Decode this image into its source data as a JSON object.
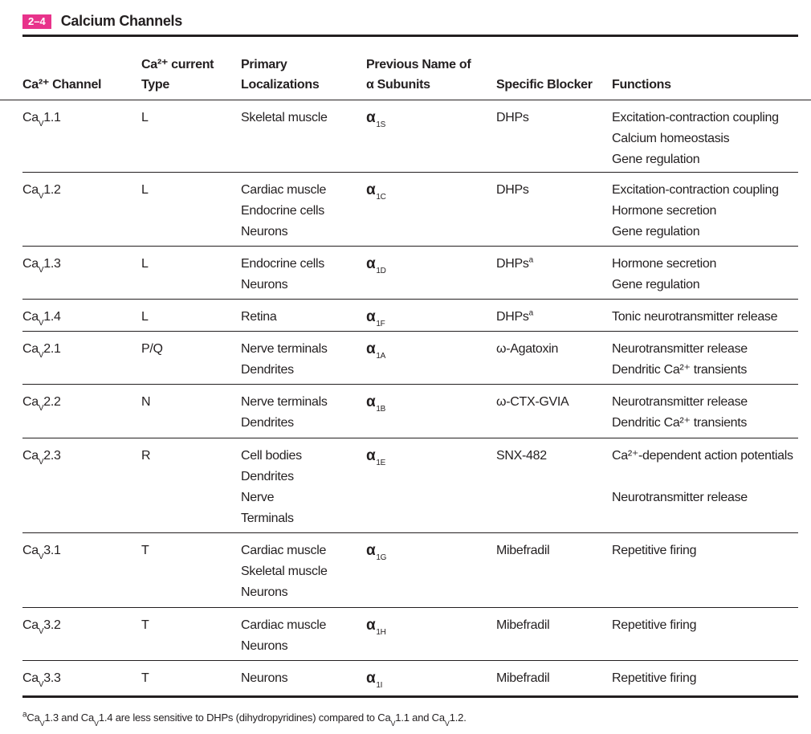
{
  "table": {
    "number": "2–4",
    "title": "Calcium Channels"
  },
  "headers": {
    "channel": "Ca²⁺ Channel",
    "current_type_l1": "Ca²⁺ current",
    "current_type_l2": "Type",
    "localization_l1": "Primary",
    "localization_l2": "Localizations",
    "previous_name_l1": "Previous Name of",
    "previous_name_l2": "α Subunits",
    "blocker": "Specific Blocker",
    "functions": "Functions"
  },
  "rows": [
    {
      "channel_prefix": "Ca",
      "channel_sub": "V",
      "channel_suffix": "1.1",
      "current_type": "L",
      "localizations": [
        "Skeletal muscle"
      ],
      "alpha": "α",
      "alpha_sub": "1S",
      "blocker": "DHPs",
      "blocker_note": "",
      "functions": [
        "Excitation-contraction coupling",
        "Calcium homeostasis",
        "Gene regulation"
      ]
    },
    {
      "channel_prefix": "Ca",
      "channel_sub": "V",
      "channel_suffix": "1.2",
      "current_type": "L",
      "localizations": [
        "Cardiac muscle",
        "Endocrine cells",
        "Neurons"
      ],
      "alpha": "α",
      "alpha_sub": "1C",
      "blocker": "DHPs",
      "blocker_note": "",
      "functions": [
        "Excitation-contraction coupling",
        "Hormone secretion",
        "Gene regulation"
      ]
    },
    {
      "channel_prefix": "Ca",
      "channel_sub": "V",
      "channel_suffix": "1.3",
      "current_type": "L",
      "localizations": [
        "Endocrine cells",
        "Neurons"
      ],
      "alpha": "α",
      "alpha_sub": "1D",
      "blocker": "DHPs",
      "blocker_note": "a",
      "functions": [
        "Hormone secretion",
        "Gene regulation"
      ]
    },
    {
      "channel_prefix": "Ca",
      "channel_sub": "V",
      "channel_suffix": "1.4",
      "current_type": "L",
      "localizations": [
        "Retina"
      ],
      "alpha": "α",
      "alpha_sub": "1F",
      "blocker": "DHPs",
      "blocker_note": "a",
      "functions": [
        "Tonic neurotransmitter release"
      ]
    },
    {
      "channel_prefix": "Ca",
      "channel_sub": "V",
      "channel_suffix": "2.1",
      "current_type": "P/Q",
      "localizations": [
        "Nerve terminals",
        "Dendrites"
      ],
      "alpha": "α",
      "alpha_sub": "1A",
      "blocker": "ω-Agatoxin",
      "blocker_note": "",
      "functions": [
        "Neurotransmitter release",
        "Dendritic Ca²⁺ transients"
      ]
    },
    {
      "channel_prefix": "Ca",
      "channel_sub": "V",
      "channel_suffix": "2.2",
      "current_type": "N",
      "localizations": [
        "Nerve terminals",
        "Dendrites"
      ],
      "alpha": "α",
      "alpha_sub": "1B",
      "blocker": "ω-CTX-GVIA",
      "blocker_note": "",
      "functions": [
        "Neurotransmitter release",
        "Dendritic Ca²⁺ transients"
      ]
    },
    {
      "channel_prefix": "Ca",
      "channel_sub": "V",
      "channel_suffix": "2.3",
      "current_type": "R",
      "localizations": [
        "Cell bodies",
        "Dendrites",
        "Nerve",
        "Terminals"
      ],
      "alpha": "α",
      "alpha_sub": "1E",
      "blocker": "SNX-482",
      "blocker_note": "",
      "functions": [
        "Ca²⁺-dependent action potentials",
        "",
        "Neurotransmitter release"
      ]
    },
    {
      "channel_prefix": "Ca",
      "channel_sub": "V",
      "channel_suffix": "3.1",
      "current_type": "T",
      "localizations": [
        "Cardiac muscle",
        "Skeletal muscle",
        "Neurons"
      ],
      "alpha": "α",
      "alpha_sub": "1G",
      "blocker": "Mibefradil",
      "blocker_note": "",
      "functions": [
        "Repetitive firing"
      ]
    },
    {
      "channel_prefix": "Ca",
      "channel_sub": "V",
      "channel_suffix": "3.2",
      "current_type": "T",
      "localizations": [
        "Cardiac muscle",
        "Neurons"
      ],
      "alpha": "α",
      "alpha_sub": "1H",
      "blocker": "Mibefradil",
      "blocker_note": "",
      "functions": [
        "Repetitive firing"
      ]
    },
    {
      "channel_prefix": "Ca",
      "channel_sub": "V",
      "channel_suffix": "3.3",
      "current_type": "T",
      "localizations": [
        "Neurons"
      ],
      "alpha": "α",
      "alpha_sub": "1I",
      "blocker": "Mibefradil",
      "blocker_note": "",
      "functions": [
        "Repetitive firing"
      ]
    }
  ],
  "footnote": {
    "mark": "a",
    "text": "Ca_V1.3 and Ca_V1.4 are less sensitive to DHPs (dihydropyridines) compared to Ca_V1.1 and Ca_V1.2."
  },
  "colors": {
    "accent": "#e8338b",
    "text": "#231f20"
  }
}
